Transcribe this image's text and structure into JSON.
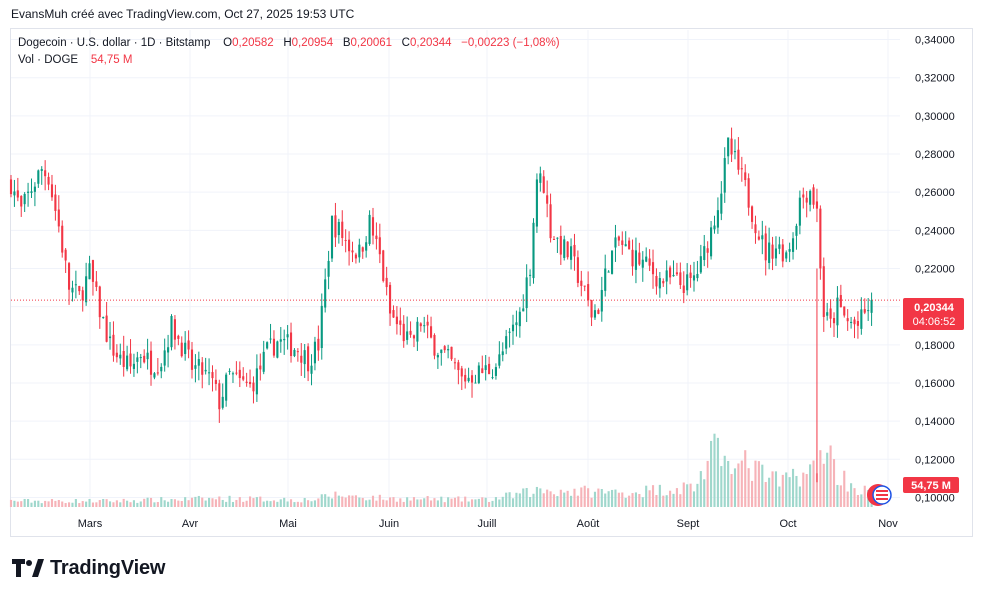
{
  "attribution": "EvansMuh créé avec TradingView.com, Oct 27, 2025 19:53 UTC",
  "legend": {
    "symbol": "Dogecoin · U.S. dollar · 1D · Bitstamp",
    "o_label": "O",
    "o_value": "0,20582",
    "h_label": "H",
    "h_value": "0,20954",
    "b_label": "B",
    "b_value": "0,20061",
    "c_label": "C",
    "c_value": "0,20344",
    "change": "−0,00223 (−1,08%)",
    "vol_label": "Vol · DOGE",
    "vol_value": "54,75 M"
  },
  "price_badge": {
    "price": "0,20344",
    "countdown": "04:06:52"
  },
  "volume_badge": "54,75 M",
  "footer": {
    "logo_text": "TradingView"
  },
  "colors": {
    "up": "#089981",
    "down": "#f23645",
    "up_vol": "#9fd7cc",
    "down_vol": "#f6b3b8",
    "grid": "#f0f3fa"
  },
  "chart_data": {
    "type": "candlestick",
    "interval": "1D",
    "y_axis_labels": [
      "0,10000",
      "0,12000",
      "0,14000",
      "0,16000",
      "0,18000",
      "0,20000",
      "0,22000",
      "0,24000",
      "0,26000",
      "0,28000",
      "0,30000",
      "0,32000",
      "0,34000"
    ],
    "y_axis_values": [
      0.1,
      0.12,
      0.14,
      0.16,
      0.18,
      0.2,
      0.22,
      0.24,
      0.26,
      0.28,
      0.3,
      0.32,
      0.34
    ],
    "x_axis_labels": [
      "Mars",
      "Avr",
      "Mai",
      "Juin",
      "Juill",
      "Août",
      "Sept",
      "Oct",
      "Nov"
    ],
    "last_close": 0.20344,
    "close_path": [
      [
        0,
        0.265
      ],
      [
        3,
        0.25
      ],
      [
        6,
        0.262
      ],
      [
        9,
        0.272
      ],
      [
        11,
        0.268
      ],
      [
        14,
        0.242
      ],
      [
        17,
        0.21
      ],
      [
        20,
        0.205
      ],
      [
        23,
        0.218
      ],
      [
        26,
        0.198
      ],
      [
        29,
        0.18
      ],
      [
        32,
        0.172
      ],
      [
        35,
        0.168
      ],
      [
        38,
        0.176
      ],
      [
        41,
        0.17
      ],
      [
        44,
        0.172
      ],
      [
        47,
        0.19
      ],
      [
        50,
        0.18
      ],
      [
        53,
        0.168
      ],
      [
        56,
        0.166
      ],
      [
        59,
        0.16
      ],
      [
        61,
        0.15
      ],
      [
        64,
        0.164
      ],
      [
        67,
        0.16
      ],
      [
        70,
        0.158
      ],
      [
        72,
        0.164
      ],
      [
        75,
        0.176
      ],
      [
        78,
        0.182
      ],
      [
        81,
        0.18
      ],
      [
        84,
        0.178
      ],
      [
        87,
        0.172
      ],
      [
        90,
        0.18
      ],
      [
        92,
        0.212
      ],
      [
        94,
        0.244
      ],
      [
        96,
        0.24
      ],
      [
        99,
        0.232
      ],
      [
        102,
        0.228
      ],
      [
        105,
        0.244
      ],
      [
        108,
        0.226
      ],
      [
        111,
        0.196
      ],
      [
        114,
        0.188
      ],
      [
        117,
        0.18
      ],
      [
        120,
        0.192
      ],
      [
        123,
        0.182
      ],
      [
        126,
        0.176
      ],
      [
        129,
        0.17
      ],
      [
        132,
        0.162
      ],
      [
        135,
        0.164
      ],
      [
        138,
        0.166
      ],
      [
        141,
        0.168
      ],
      [
        143,
        0.172
      ],
      [
        146,
        0.184
      ],
      [
        149,
        0.196
      ],
      [
        152,
        0.222
      ],
      [
        154,
        0.268
      ],
      [
        156,
        0.264
      ],
      [
        158,
        0.24
      ],
      [
        161,
        0.232
      ],
      [
        164,
        0.226
      ],
      [
        167,
        0.212
      ],
      [
        170,
        0.196
      ],
      [
        172,
        0.2
      ],
      [
        175,
        0.224
      ],
      [
        178,
        0.234
      ],
      [
        181,
        0.228
      ],
      [
        184,
        0.224
      ],
      [
        187,
        0.22
      ],
      [
        190,
        0.214
      ],
      [
        193,
        0.214
      ],
      [
        196,
        0.212
      ],
      [
        199,
        0.212
      ],
      [
        202,
        0.222
      ],
      [
        205,
        0.24
      ],
      [
        208,
        0.262
      ],
      [
        210,
        0.284
      ],
      [
        212,
        0.276
      ],
      [
        215,
        0.262
      ],
      [
        218,
        0.244
      ],
      [
        221,
        0.228
      ],
      [
        224,
        0.232
      ],
      [
        227,
        0.228
      ],
      [
        229,
        0.238
      ],
      [
        231,
        0.256
      ],
      [
        234,
        0.262
      ],
      [
        236,
        0.25
      ],
      [
        238,
        0.196
      ],
      [
        240,
        0.19
      ],
      [
        242,
        0.2
      ],
      [
        245,
        0.192
      ],
      [
        248,
        0.19
      ],
      [
        250,
        0.196
      ],
      [
        252,
        0.203
      ]
    ],
    "volume_path": [
      [
        0,
        0.05
      ],
      [
        30,
        0.05
      ],
      [
        60,
        0.07
      ],
      [
        88,
        0.06
      ],
      [
        95,
        0.1
      ],
      [
        110,
        0.07
      ],
      [
        140,
        0.06
      ],
      [
        155,
        0.14
      ],
      [
        180,
        0.12
      ],
      [
        200,
        0.17
      ],
      [
        206,
        0.45
      ],
      [
        208,
        0.38
      ],
      [
        210,
        0.6
      ],
      [
        212,
        0.3
      ],
      [
        215,
        0.35
      ],
      [
        225,
        0.2
      ],
      [
        230,
        0.28
      ],
      [
        236,
        0.3
      ],
      [
        238,
        0.55
      ],
      [
        242,
        0.28
      ],
      [
        248,
        0.14
      ],
      [
        252,
        0.13
      ]
    ],
    "volume_max_label": "54,75 M"
  }
}
